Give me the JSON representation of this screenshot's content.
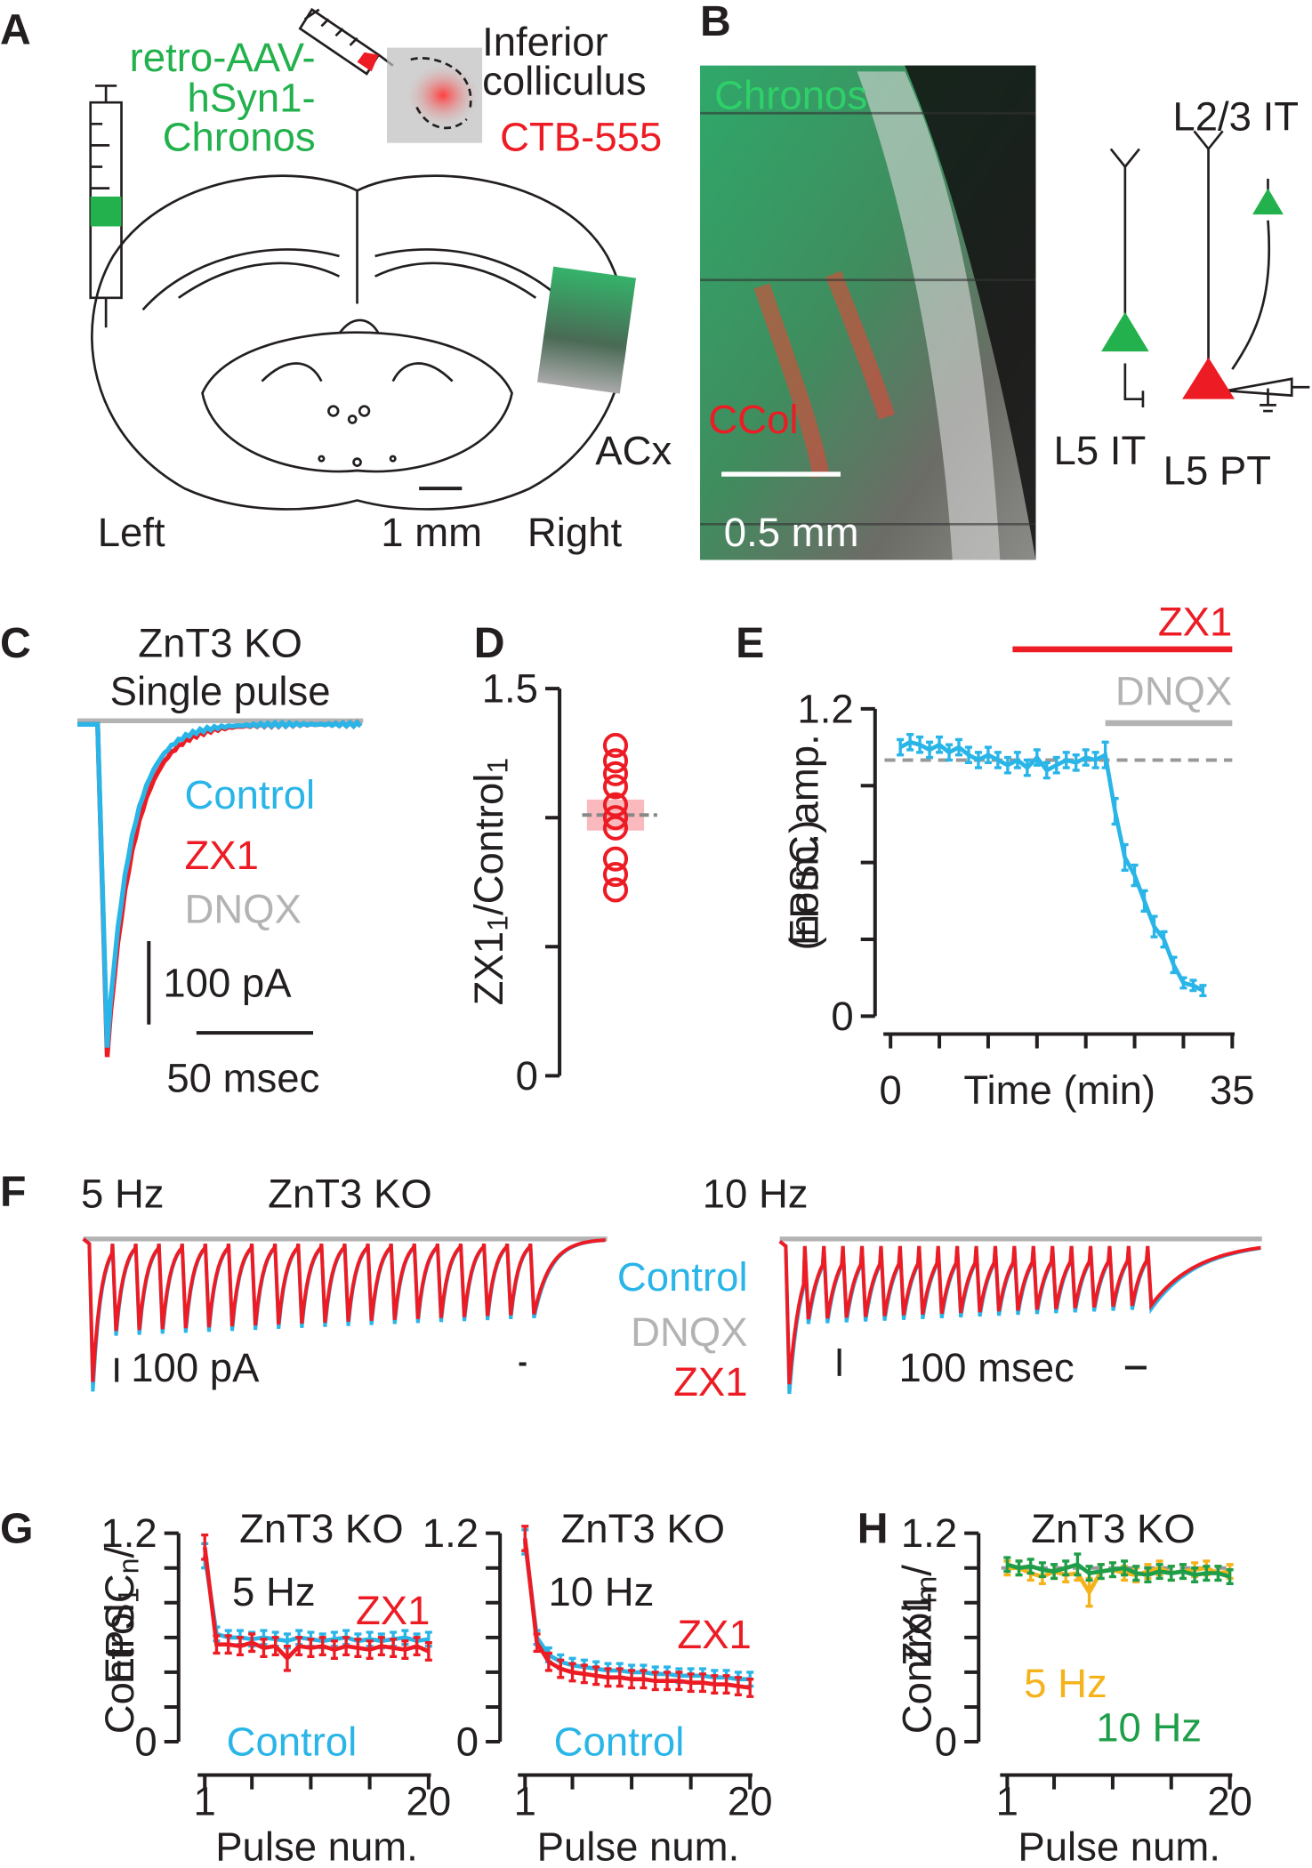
{
  "panel_labels": [
    "A",
    "B",
    "C",
    "D",
    "E",
    "F",
    "G",
    "H"
  ],
  "panel_a": {
    "virus": [
      "retro-AAV-",
      "hSyn1-",
      "Chronos"
    ],
    "target": [
      "Inferior",
      "colliculus"
    ],
    "tracer": "CTB-555",
    "region": "ACx",
    "left": "Left",
    "scale": "1 mm",
    "right": "Right"
  },
  "panel_b": {
    "chronos": "Chronos",
    "ccol": "CCol",
    "scale": "0.5 mm",
    "cells": [
      "L2/3 IT",
      "L5 IT",
      "L5 PT"
    ]
  },
  "panel_c": {
    "title": [
      "ZnT3 KO",
      "Single pulse"
    ],
    "legend": [
      "Control",
      "ZX1",
      "DNQX"
    ],
    "scale_y": "100 pA",
    "scale_x": "50 msec"
  },
  "panel_f": {
    "left_title": "5 Hz",
    "genotype": "ZnT3 KO",
    "right_title": "10 Hz",
    "legend": [
      "Control",
      "DNQX",
      "ZX1"
    ],
    "scale_y": "100 pA",
    "scale_x": "100 msec"
  },
  "chart_data": [
    {
      "type": "scatter",
      "ylabel": [
        [
          "ZX1",
          "1",
          "/Control",
          "1"
        ]
      ],
      "values": [
        1.28,
        1.22,
        1.17,
        1.12,
        1.05,
        1.0,
        0.96,
        0.84,
        0.78,
        0.72
      ],
      "mean": 1.01,
      "sem": 0.06,
      "color": "#ed1c24",
      "ylim": [
        0,
        1.5
      ],
      "yticks": [
        0,
        1.5
      ],
      "minor_yticks": [
        0.5,
        1
      ]
    },
    {
      "type": "line",
      "ylabel": [
        [
          "EPSC amp."
        ],
        [
          "(norm.)"
        ]
      ],
      "xlabel": "Time (min)",
      "x": [
        1,
        2,
        3,
        4,
        5,
        6,
        7,
        8,
        9,
        10,
        11,
        12,
        13,
        14,
        15,
        16,
        17,
        18,
        19,
        20,
        21,
        22,
        23,
        24,
        25,
        26,
        27,
        28,
        29,
        30,
        31,
        32
      ],
      "values": [
        1.05,
        1.07,
        1.06,
        1.04,
        1.06,
        1.03,
        1.05,
        1.02,
        1.0,
        1.02,
        1.0,
        0.98,
        1.0,
        0.97,
        1.01,
        0.96,
        0.98,
        1.0,
        0.99,
        1.01,
        1.0,
        1.02,
        0.8,
        0.62,
        0.55,
        0.45,
        0.35,
        0.3,
        0.2,
        0.13,
        0.12,
        0.1
      ],
      "errors": [
        0.03,
        0.03,
        0.03,
        0.03,
        0.03,
        0.03,
        0.03,
        0.03,
        0.03,
        0.03,
        0.03,
        0.03,
        0.03,
        0.03,
        0.03,
        0.03,
        0.03,
        0.03,
        0.03,
        0.03,
        0.03,
        0.05,
        0.05,
        0.05,
        0.04,
        0.04,
        0.04,
        0.03,
        0.03,
        0.02,
        0.02,
        0.02
      ],
      "color": "#29b5e8",
      "xlim": [
        0,
        35
      ],
      "xticks": [
        0,
        35
      ],
      "minor_xticks": [
        5,
        10,
        15,
        20,
        25,
        30
      ],
      "ylim": [
        0,
        1.2
      ],
      "yticks": [
        0,
        1.2
      ],
      "minor_yticks": [
        0.3,
        0.6,
        0.9
      ],
      "reference": 1.0,
      "bars": [
        {
          "label": "ZX1",
          "start": 12.5,
          "end": 35,
          "color": "#ed1c24"
        },
        {
          "label": "DNQX",
          "start": 22,
          "end": 35,
          "color": "#b3b3b3"
        }
      ]
    },
    {
      "type": "line",
      "title": "ZnT3 KO",
      "subtitle": "5 Hz",
      "ylabel": [
        [
          "EPSC",
          "n",
          "/"
        ],
        [
          "Control",
          "1"
        ]
      ],
      "xlabel": "Pulse num.",
      "x": [
        1,
        2,
        3,
        4,
        5,
        6,
        7,
        8,
        9,
        10,
        11,
        12,
        13,
        14,
        15,
        16,
        17,
        18,
        19,
        20
      ],
      "series": [
        {
          "name": "Control",
          "color": "#29b5e8",
          "values": [
            1.07,
            0.62,
            0.6,
            0.6,
            0.59,
            0.6,
            0.59,
            0.58,
            0.6,
            0.59,
            0.58,
            0.59,
            0.6,
            0.58,
            0.59,
            0.58,
            0.59,
            0.6,
            0.58,
            0.59
          ],
          "errors": [
            0.07,
            0.04,
            0.04,
            0.04,
            0.04,
            0.04,
            0.04,
            0.04,
            0.04,
            0.04,
            0.04,
            0.04,
            0.04,
            0.04,
            0.04,
            0.04,
            0.04,
            0.04,
            0.04,
            0.04
          ]
        },
        {
          "name": "ZX1",
          "color": "#ed1c24",
          "values": [
            1.12,
            0.56,
            0.56,
            0.55,
            0.57,
            0.54,
            0.55,
            0.48,
            0.55,
            0.54,
            0.55,
            0.53,
            0.55,
            0.54,
            0.53,
            0.55,
            0.54,
            0.53,
            0.55,
            0.52
          ],
          "errors": [
            0.07,
            0.05,
            0.05,
            0.05,
            0.05,
            0.05,
            0.05,
            0.07,
            0.05,
            0.05,
            0.05,
            0.05,
            0.05,
            0.05,
            0.05,
            0.05,
            0.05,
            0.05,
            0.05,
            0.05
          ]
        }
      ],
      "xlim": [
        1,
        20
      ],
      "xticks": [
        1,
        20
      ],
      "minor_xticks": [
        5,
        10,
        15
      ],
      "ylim": [
        0,
        1.2
      ],
      "yticks": [
        0,
        1.2
      ],
      "minor_yticks": [
        0.2,
        0.4,
        0.6,
        0.8,
        1
      ]
    },
    {
      "type": "line",
      "title": "ZnT3 KO",
      "subtitle": "10 Hz",
      "xlabel": "Pulse num.",
      "x": [
        1,
        2,
        3,
        4,
        5,
        6,
        7,
        8,
        9,
        10,
        11,
        12,
        13,
        14,
        15,
        16,
        17,
        18,
        19,
        20
      ],
      "series": [
        {
          "name": "Control",
          "color": "#29b5e8",
          "values": [
            1.15,
            0.6,
            0.5,
            0.46,
            0.44,
            0.43,
            0.42,
            0.41,
            0.41,
            0.4,
            0.4,
            0.39,
            0.39,
            0.38,
            0.38,
            0.38,
            0.37,
            0.37,
            0.36,
            0.36
          ],
          "errors": [
            0.07,
            0.04,
            0.04,
            0.04,
            0.04,
            0.04,
            0.04,
            0.04,
            0.04,
            0.04,
            0.04,
            0.04,
            0.04,
            0.04,
            0.04,
            0.04,
            0.04,
            0.04,
            0.04,
            0.04
          ]
        },
        {
          "name": "ZX1",
          "color": "#ed1c24",
          "values": [
            1.17,
            0.57,
            0.46,
            0.42,
            0.4,
            0.39,
            0.38,
            0.37,
            0.37,
            0.36,
            0.36,
            0.35,
            0.35,
            0.35,
            0.34,
            0.34,
            0.33,
            0.33,
            0.32,
            0.31
          ],
          "errors": [
            0.07,
            0.05,
            0.05,
            0.05,
            0.05,
            0.05,
            0.05,
            0.05,
            0.05,
            0.05,
            0.05,
            0.05,
            0.05,
            0.05,
            0.05,
            0.05,
            0.05,
            0.05,
            0.05,
            0.05
          ]
        }
      ],
      "xlim": [
        1,
        20
      ],
      "xticks": [
        1,
        20
      ],
      "minor_xticks": [
        5,
        10,
        15
      ],
      "ylim": [
        0,
        1.2
      ],
      "yticks": [
        0,
        1.2
      ],
      "minor_yticks": [
        0.2,
        0.4,
        0.6,
        0.8,
        1
      ]
    },
    {
      "type": "line",
      "title": "ZnT3 KO",
      "ylabel": [
        [
          "ZX1",
          "n",
          "/"
        ],
        [
          "Control",
          "n"
        ]
      ],
      "xlabel": "Pulse num.",
      "x": [
        1,
        2,
        3,
        4,
        5,
        6,
        7,
        8,
        9,
        10,
        11,
        12,
        13,
        14,
        15,
        16,
        17,
        18,
        19,
        20
      ],
      "series": [
        {
          "name": "5 Hz",
          "color": "#f5b21b",
          "values": [
            1.0,
            1.0,
            0.97,
            0.95,
            0.98,
            0.96,
            0.97,
            0.86,
            0.98,
            0.99,
            0.97,
            0.96,
            0.98,
            1.0,
            0.97,
            0.98,
            0.99,
            1.0,
            0.97,
            0.98
          ],
          "errors": [
            0.04,
            0.04,
            0.04,
            0.04,
            0.04,
            0.04,
            0.04,
            0.08,
            0.04,
            0.04,
            0.04,
            0.04,
            0.04,
            0.04,
            0.04,
            0.04,
            0.04,
            0.04,
            0.04,
            0.04
          ]
        },
        {
          "name": "10 Hz",
          "color": "#1f9e4a",
          "values": [
            1.02,
            1.0,
            1.01,
            0.99,
            0.98,
            1.0,
            1.02,
            0.97,
            0.98,
            0.99,
            1.0,
            0.97,
            0.96,
            0.98,
            0.97,
            0.98,
            0.96,
            0.97,
            0.97,
            0.95
          ],
          "errors": [
            0.04,
            0.04,
            0.04,
            0.04,
            0.04,
            0.04,
            0.06,
            0.04,
            0.04,
            0.04,
            0.04,
            0.04,
            0.04,
            0.04,
            0.04,
            0.04,
            0.04,
            0.04,
            0.04,
            0.04
          ]
        }
      ],
      "xlim": [
        1,
        20
      ],
      "xticks": [
        1,
        20
      ],
      "minor_xticks": [
        5,
        10,
        15
      ],
      "ylim": [
        0,
        1.2
      ],
      "yticks": [
        0,
        1.2
      ],
      "minor_yticks": [
        0.2,
        0.4,
        0.6,
        0.8,
        1
      ],
      "reference": 1.0
    }
  ]
}
